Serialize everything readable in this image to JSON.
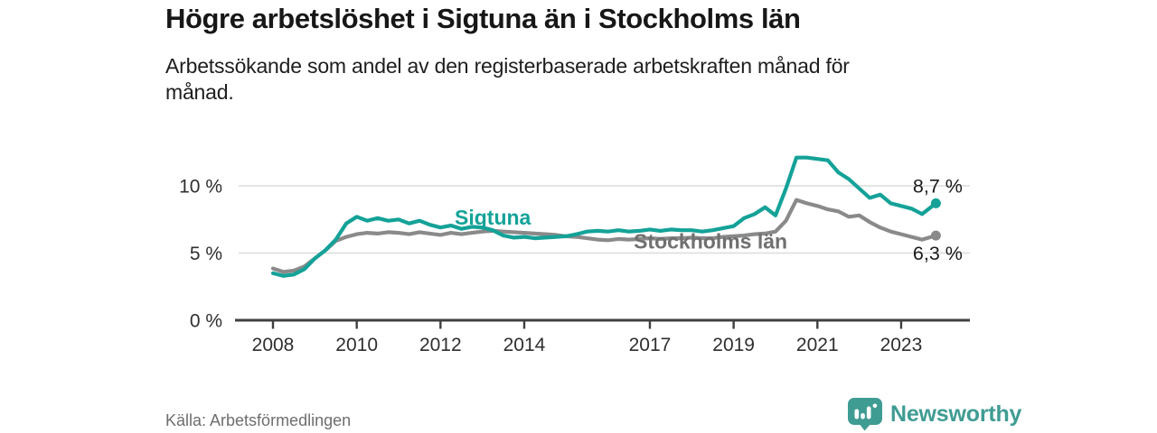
{
  "branding": {
    "name": "Newsworthy",
    "color": "#3f9c93",
    "icon": "newsworthy-bubble-chart-icon"
  },
  "colors": {
    "sigtuna": "#14a298",
    "stockholm": "#8a8a8a",
    "stockholm_label": "#707070",
    "grid": "#dcdcdc",
    "axis": "#3f3f3f",
    "tick_text": "#2f2f2f",
    "value_label": "#1a1a1a",
    "title": "#171717",
    "subtitle": "#1e1e1e",
    "source": "#6e6e6e"
  },
  "chart_data": {
    "type": "line",
    "title": "Högre arbetslöshet i Sigtuna än i Stockholms län",
    "subtitle_lines": [
      "Arbetssökande som andel av den registerbaserade arbetskraften månad för",
      "månad."
    ],
    "source": "Källa: Arbetsförmedlingen",
    "unit": "%",
    "grid": "horizontal-only",
    "legend": "inline-labels",
    "xlim": [
      2007.2,
      2024.6
    ],
    "ylim": [
      0,
      13.8
    ],
    "x_ticks": [
      "2008",
      "2010",
      "2012",
      "2014",
      "2017",
      "2019",
      "2021",
      "2023"
    ],
    "y_ticks": [
      {
        "value": 0,
        "label": "0 %"
      },
      {
        "value": 5,
        "label": "5 %"
      },
      {
        "value": 10,
        "label": "10 %"
      }
    ],
    "series": [
      {
        "key": "stockholm",
        "name": "Stockholms län",
        "color": "#8a8a8a",
        "label_color": "#707070",
        "end_label": "6,3 %",
        "end_label_side": "below",
        "inline_label": {
          "t": 2018.45,
          "v": 5.35
        },
        "points": [
          [
            2008.0,
            3.85
          ],
          [
            2008.25,
            3.6
          ],
          [
            2008.5,
            3.7
          ],
          [
            2008.75,
            4.0
          ],
          [
            2009.0,
            4.6
          ],
          [
            2009.25,
            5.2
          ],
          [
            2009.5,
            5.9
          ],
          [
            2009.75,
            6.2
          ],
          [
            2010.0,
            6.4
          ],
          [
            2010.25,
            6.5
          ],
          [
            2010.5,
            6.45
          ],
          [
            2010.75,
            6.55
          ],
          [
            2011.0,
            6.5
          ],
          [
            2011.25,
            6.4
          ],
          [
            2011.5,
            6.55
          ],
          [
            2011.75,
            6.45
          ],
          [
            2012.0,
            6.35
          ],
          [
            2012.25,
            6.5
          ],
          [
            2012.5,
            6.4
          ],
          [
            2012.75,
            6.5
          ],
          [
            2013.0,
            6.6
          ],
          [
            2013.25,
            6.65
          ],
          [
            2013.5,
            6.6
          ],
          [
            2013.75,
            6.55
          ],
          [
            2014.0,
            6.5
          ],
          [
            2014.25,
            6.45
          ],
          [
            2014.5,
            6.4
          ],
          [
            2014.75,
            6.35
          ],
          [
            2015.0,
            6.25
          ],
          [
            2015.25,
            6.2
          ],
          [
            2015.5,
            6.1
          ],
          [
            2015.75,
            6.0
          ],
          [
            2016.0,
            5.95
          ],
          [
            2016.25,
            6.05
          ],
          [
            2016.5,
            6.0
          ],
          [
            2016.75,
            6.05
          ],
          [
            2017.0,
            6.1
          ],
          [
            2017.25,
            6.05
          ],
          [
            2017.5,
            6.1
          ],
          [
            2017.75,
            6.1
          ],
          [
            2018.0,
            6.15
          ],
          [
            2018.25,
            6.1
          ],
          [
            2018.5,
            6.1
          ],
          [
            2018.75,
            6.2
          ],
          [
            2019.0,
            6.25
          ],
          [
            2019.25,
            6.3
          ],
          [
            2019.5,
            6.4
          ],
          [
            2019.75,
            6.45
          ],
          [
            2020.0,
            6.6
          ],
          [
            2020.25,
            7.4
          ],
          [
            2020.5,
            8.95
          ],
          [
            2020.75,
            8.7
          ],
          [
            2021.0,
            8.5
          ],
          [
            2021.25,
            8.25
          ],
          [
            2021.5,
            8.1
          ],
          [
            2021.75,
            7.7
          ],
          [
            2022.0,
            7.8
          ],
          [
            2022.25,
            7.3
          ],
          [
            2022.5,
            6.9
          ],
          [
            2022.75,
            6.6
          ],
          [
            2023.0,
            6.4
          ],
          [
            2023.25,
            6.2
          ],
          [
            2023.5,
            6.0
          ],
          [
            2023.83,
            6.3
          ]
        ]
      },
      {
        "key": "sigtuna",
        "name": "Sigtuna",
        "color": "#14a298",
        "label_color": "#14a298",
        "end_label": "8,7 %",
        "end_label_side": "above",
        "inline_label": {
          "t": 2013.25,
          "v": 7.1
        },
        "points": [
          [
            2008.0,
            3.5
          ],
          [
            2008.25,
            3.3
          ],
          [
            2008.5,
            3.4
          ],
          [
            2008.75,
            3.8
          ],
          [
            2009.0,
            4.6
          ],
          [
            2009.25,
            5.2
          ],
          [
            2009.5,
            6.0
          ],
          [
            2009.75,
            7.2
          ],
          [
            2010.0,
            7.7
          ],
          [
            2010.25,
            7.4
          ],
          [
            2010.5,
            7.6
          ],
          [
            2010.75,
            7.4
          ],
          [
            2011.0,
            7.5
          ],
          [
            2011.25,
            7.2
          ],
          [
            2011.5,
            7.4
          ],
          [
            2011.75,
            7.1
          ],
          [
            2012.0,
            6.9
          ],
          [
            2012.25,
            7.05
          ],
          [
            2012.5,
            6.8
          ],
          [
            2012.75,
            6.95
          ],
          [
            2013.0,
            6.9
          ],
          [
            2013.25,
            6.7
          ],
          [
            2013.5,
            6.3
          ],
          [
            2013.75,
            6.15
          ],
          [
            2014.0,
            6.2
          ],
          [
            2014.25,
            6.1
          ],
          [
            2014.5,
            6.15
          ],
          [
            2014.75,
            6.2
          ],
          [
            2015.0,
            6.25
          ],
          [
            2015.25,
            6.4
          ],
          [
            2015.5,
            6.6
          ],
          [
            2015.75,
            6.65
          ],
          [
            2016.0,
            6.6
          ],
          [
            2016.25,
            6.7
          ],
          [
            2016.5,
            6.6
          ],
          [
            2016.75,
            6.65
          ],
          [
            2017.0,
            6.75
          ],
          [
            2017.25,
            6.65
          ],
          [
            2017.5,
            6.75
          ],
          [
            2017.75,
            6.7
          ],
          [
            2018.0,
            6.7
          ],
          [
            2018.25,
            6.6
          ],
          [
            2018.5,
            6.7
          ],
          [
            2018.75,
            6.85
          ],
          [
            2019.0,
            7.0
          ],
          [
            2019.25,
            7.6
          ],
          [
            2019.5,
            7.9
          ],
          [
            2019.75,
            8.4
          ],
          [
            2020.0,
            7.8
          ],
          [
            2020.25,
            9.8
          ],
          [
            2020.5,
            12.1
          ],
          [
            2020.75,
            12.1
          ],
          [
            2021.0,
            12.0
          ],
          [
            2021.25,
            11.9
          ],
          [
            2021.5,
            11.0
          ],
          [
            2021.75,
            10.5
          ],
          [
            2022.0,
            9.8
          ],
          [
            2022.25,
            9.1
          ],
          [
            2022.5,
            9.35
          ],
          [
            2022.75,
            8.7
          ],
          [
            2023.0,
            8.5
          ],
          [
            2023.25,
            8.3
          ],
          [
            2023.5,
            7.9
          ],
          [
            2023.83,
            8.7
          ]
        ]
      }
    ]
  }
}
